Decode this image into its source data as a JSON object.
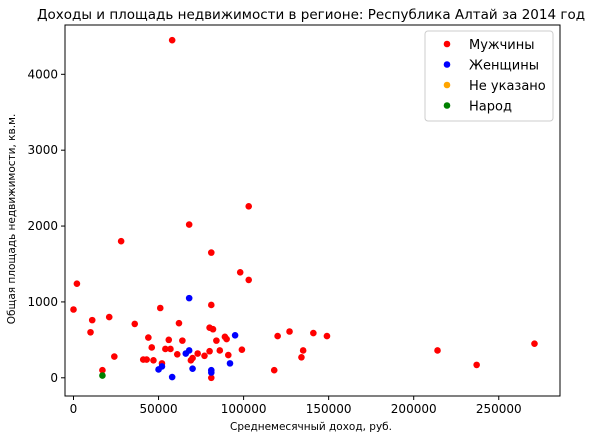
{
  "chart_data": {
    "type": "scatter",
    "title": "Доходы и площадь недвижимости в регионе: Республика Алтай за 2014 год",
    "xlabel": "Среднемесячный доход, руб.",
    "ylabel": "Общая площадь недвижимости, кв.м.",
    "xlim": [
      -5000,
      286000
    ],
    "ylim": [
      -240,
      4650
    ],
    "xticks": [
      0,
      50000,
      100000,
      150000,
      200000,
      250000
    ],
    "yticks": [
      0,
      1000,
      2000,
      3000,
      4000
    ],
    "grid": false,
    "legend_position": "top-right",
    "series": [
      {
        "name": "Мужчины",
        "color": "#ff0000",
        "points": [
          [
            58000,
            4450
          ],
          [
            68000,
            2020
          ],
          [
            103000,
            2260
          ],
          [
            28000,
            1800
          ],
          [
            81000,
            1650
          ],
          [
            2000,
            1240
          ],
          [
            98000,
            1390
          ],
          [
            103000,
            1290
          ],
          [
            0,
            900
          ],
          [
            51000,
            920
          ],
          [
            81000,
            960
          ],
          [
            11000,
            760
          ],
          [
            21000,
            800
          ],
          [
            36000,
            710
          ],
          [
            62000,
            720
          ],
          [
            80000,
            660
          ],
          [
            82000,
            640
          ],
          [
            10000,
            600
          ],
          [
            44000,
            530
          ],
          [
            56000,
            500
          ],
          [
            64000,
            490
          ],
          [
            84000,
            490
          ],
          [
            89000,
            540
          ],
          [
            90000,
            510
          ],
          [
            120000,
            550
          ],
          [
            127000,
            610
          ],
          [
            141000,
            590
          ],
          [
            149000,
            550
          ],
          [
            46000,
            400
          ],
          [
            54000,
            380
          ],
          [
            57000,
            380
          ],
          [
            61000,
            310
          ],
          [
            73000,
            320
          ],
          [
            77000,
            290
          ],
          [
            80000,
            350
          ],
          [
            86000,
            360
          ],
          [
            91000,
            300
          ],
          [
            99000,
            370
          ],
          [
            135000,
            360
          ],
          [
            134000,
            270
          ],
          [
            214000,
            360
          ],
          [
            271000,
            450
          ],
          [
            24000,
            280
          ],
          [
            41000,
            240
          ],
          [
            43000,
            240
          ],
          [
            47000,
            230
          ],
          [
            52000,
            190
          ],
          [
            69000,
            230
          ],
          [
            70000,
            260
          ],
          [
            17000,
            100
          ],
          [
            118000,
            100
          ],
          [
            237000,
            170
          ],
          [
            81000,
            0
          ]
        ]
      },
      {
        "name": "Женщины",
        "color": "#0000ff",
        "points": [
          [
            68000,
            1050
          ],
          [
            95000,
            560
          ],
          [
            68000,
            360
          ],
          [
            66000,
            320
          ],
          [
            92000,
            190
          ],
          [
            50000,
            110
          ],
          [
            52000,
            150
          ],
          [
            70000,
            120
          ],
          [
            81000,
            100
          ],
          [
            81000,
            70
          ],
          [
            58000,
            10
          ]
        ]
      },
      {
        "name": "Не указано",
        "color": "#ffa500",
        "points": []
      },
      {
        "name": "Народ",
        "color": "#008000",
        "points": [
          [
            17000,
            30
          ]
        ]
      }
    ]
  }
}
